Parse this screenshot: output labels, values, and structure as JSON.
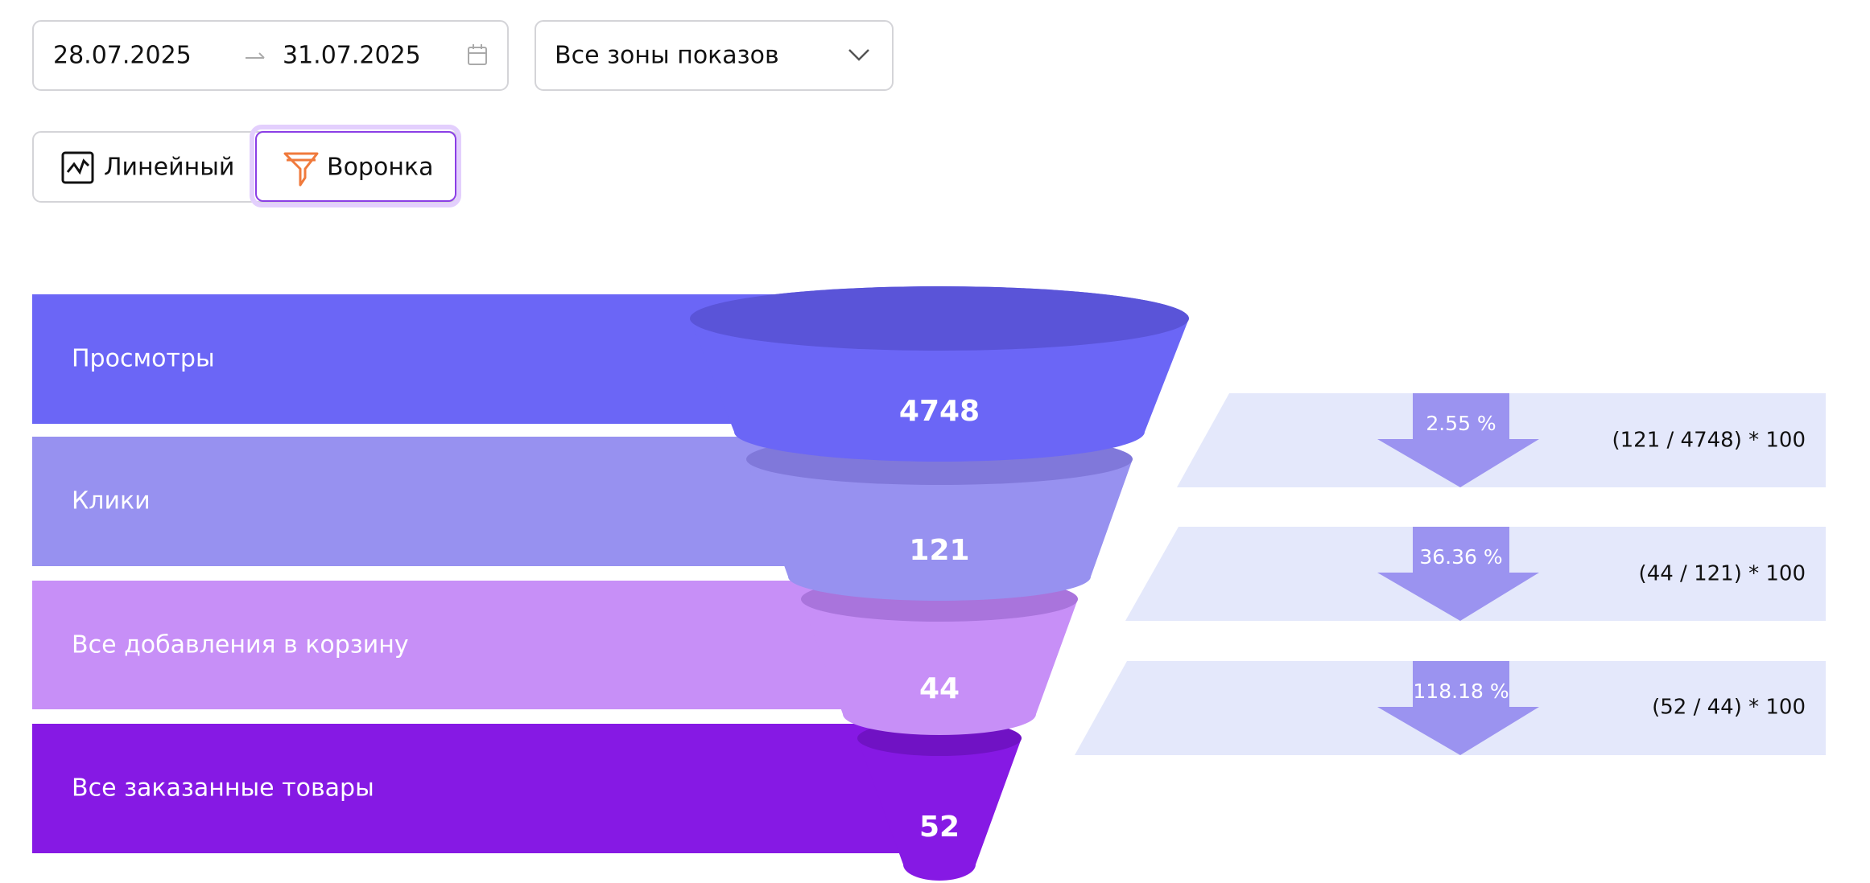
{
  "filters": {
    "date_from": "28.07.2025",
    "date_to": "31.07.2025",
    "zone": "Все зоны показов"
  },
  "tabs": [
    {
      "label": "Линейный"
    },
    {
      "label": "Воронка"
    }
  ],
  "funnel": {
    "stages": [
      {
        "label": "Просмотры",
        "value": "4748"
      },
      {
        "label": "Клики",
        "value": "121"
      },
      {
        "label": "Все добавления в корзину",
        "value": "44"
      },
      {
        "label": "Все заказанные товары",
        "value": "52"
      }
    ],
    "conversions": [
      {
        "percent": "2.55 %",
        "formula": "(121 / 4748) * 100"
      },
      {
        "percent": "36.36 %",
        "formula": "(44 / 121) * 100"
      },
      {
        "percent": "118.18 %",
        "formula": "(52 / 44) * 100"
      }
    ]
  }
}
